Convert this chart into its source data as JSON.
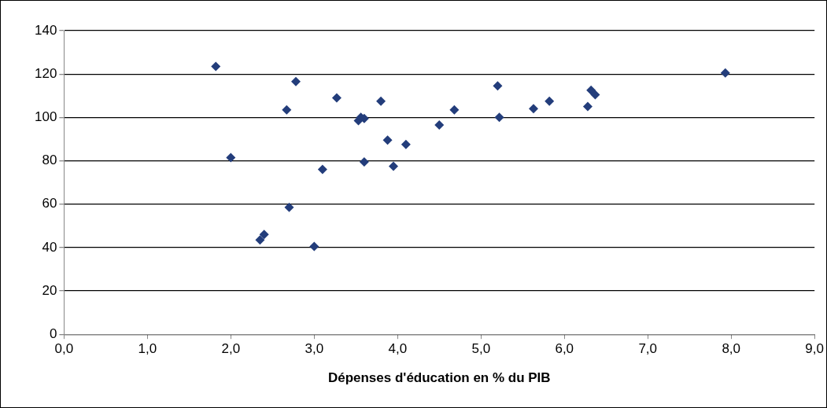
{
  "chart_data": {
    "type": "scatter",
    "xlabel": "Dépenses d'éducation en % du PIB",
    "x": [
      1.82,
      2.0,
      2.35,
      2.4,
      2.67,
      2.7,
      2.78,
      3.0,
      3.1,
      3.27,
      3.53,
      3.56,
      3.6,
      3.6,
      3.8,
      3.88,
      3.95,
      4.1,
      4.5,
      4.68,
      5.2,
      5.22,
      5.63,
      5.82,
      6.28,
      6.32,
      6.37,
      7.93
    ],
    "series": [
      {
        "color": "#233d7b",
        "values": [
          123.5,
          81.5,
          43.5,
          46,
          103.5,
          58.5,
          116.5,
          40.5,
          76,
          109,
          98.5,
          100,
          99.5,
          79.5,
          107.5,
          89.5,
          77.5,
          87.5,
          96.5,
          103.5,
          114.5,
          100,
          104,
          107.5,
          105,
          112.5,
          110.5,
          120.5
        ]
      }
    ],
    "xlim": [
      0,
      9
    ],
    "xticks": [
      {
        "value": 0,
        "label": "0,0"
      },
      {
        "value": 1,
        "label": "1,0"
      },
      {
        "value": 2,
        "label": "2,0"
      },
      {
        "value": 3,
        "label": "3,0"
      },
      {
        "value": 4,
        "label": "4,0"
      },
      {
        "value": 5,
        "label": "5,0"
      },
      {
        "value": 6,
        "label": "6,0"
      },
      {
        "value": 7,
        "label": "7,0"
      },
      {
        "value": 8,
        "label": "8,0"
      },
      {
        "value": 9,
        "label": "9,0"
      }
    ],
    "ylim": [
      0,
      140
    ],
    "yticks": [
      0,
      20,
      40,
      60,
      80,
      100,
      120,
      140
    ],
    "grid": "y",
    "legend": false,
    "marker": "diamond"
  }
}
